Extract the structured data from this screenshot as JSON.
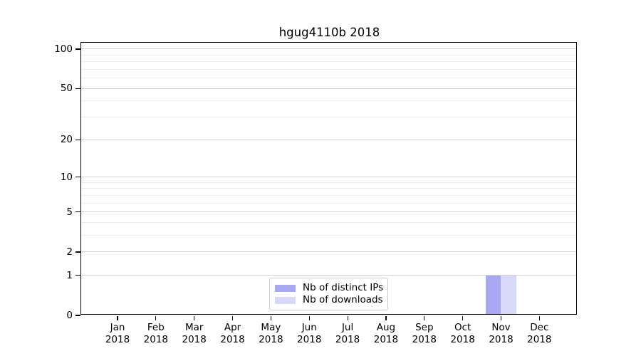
{
  "chart_data": {
    "type": "bar",
    "title": "hgug4110b 2018",
    "categories": [
      "Jan 2018",
      "Feb 2018",
      "Mar 2018",
      "Apr 2018",
      "May 2018",
      "Jun 2018",
      "Jul 2018",
      "Aug 2018",
      "Sep 2018",
      "Oct 2018",
      "Nov 2018",
      "Dec 2018"
    ],
    "month_line": [
      "Jan",
      "Feb",
      "Mar",
      "Apr",
      "May",
      "Jun",
      "Jul",
      "Aug",
      "Sep",
      "Oct",
      "Nov",
      "Dec"
    ],
    "year_line": "2018",
    "series": [
      {
        "name": "Nb of distinct IPs",
        "color": "#a8a8f0",
        "values": [
          0,
          0,
          0,
          0,
          0,
          0,
          0,
          0,
          0,
          0,
          1,
          0
        ]
      },
      {
        "name": "Nb of downloads",
        "color": "#d8d8f8",
        "values": [
          0,
          0,
          0,
          0,
          0,
          0,
          0,
          0,
          0,
          0,
          1,
          0
        ]
      }
    ],
    "xlabel": "",
    "ylabel": "",
    "y_scale": "log1p",
    "ylim": [
      0,
      112
    ],
    "y_major_ticks": [
      0,
      1,
      2,
      5,
      10,
      20,
      50,
      100
    ],
    "y_minor_ticks": [
      3,
      4,
      6,
      7,
      8,
      9,
      30,
      40,
      60,
      70,
      80,
      90
    ],
    "grid": true,
    "legend_position": "bottom-center",
    "colors": {
      "grid_major": "#d2d2d2",
      "grid_minor": "#ececec",
      "axis": "#000000",
      "legend_border": "#cccccc",
      "background": "#ffffff"
    }
  }
}
